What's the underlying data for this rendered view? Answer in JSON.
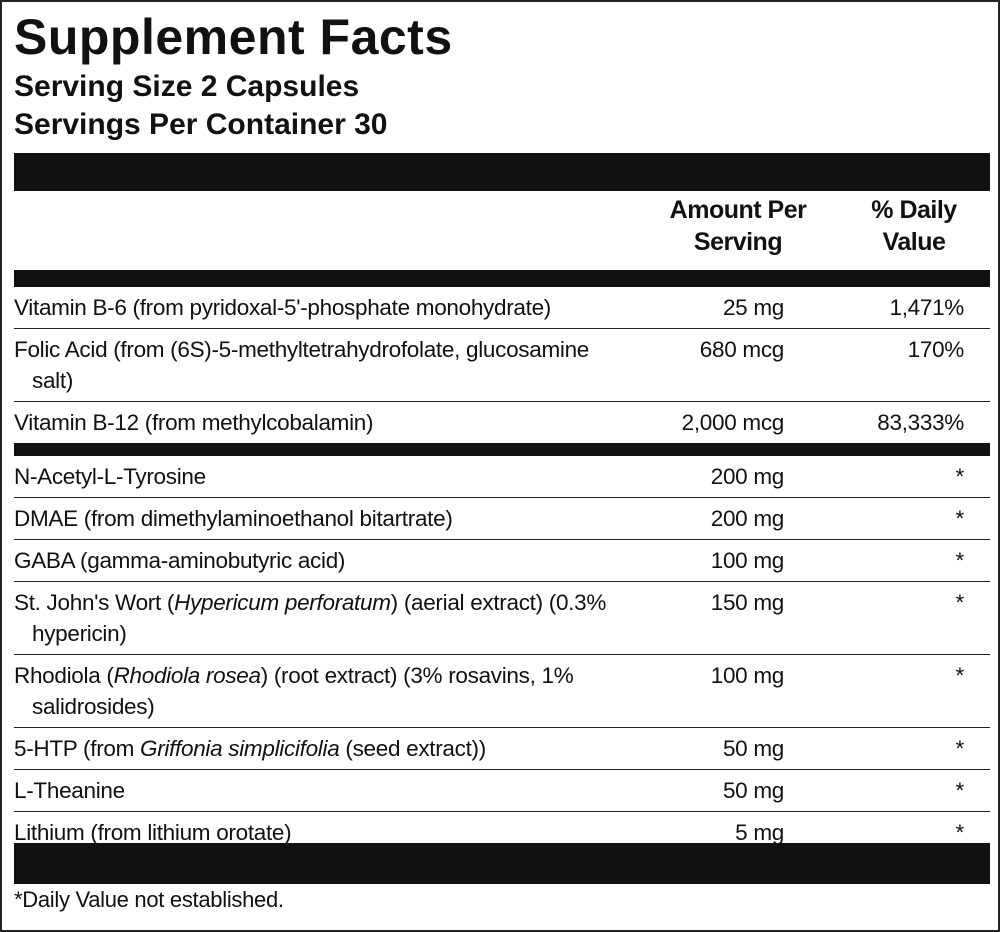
{
  "title": "Supplement Facts",
  "serving_size": "Serving Size 2 Capsules",
  "servings_per_container": "Servings Per Container 30",
  "header": {
    "amount": "Amount Per Serving",
    "daily_value": "% Daily Value"
  },
  "groups": [
    {
      "rows": [
        {
          "name_parts": [
            "Vitamin B-6 (from pyridoxal-5'-phosphate monohydrate)"
          ],
          "amount": "25 mg",
          "daily_value": "1,471%"
        },
        {
          "name_parts": [
            "Folic Acid (from (6S)-5-methyltetrahydrofolate, glucosamine salt)"
          ],
          "amount": "680 mcg",
          "daily_value": "170%"
        },
        {
          "name_parts": [
            "Vitamin B-12 (from methylcobalamin)"
          ],
          "amount": "2,000 mcg",
          "daily_value": "83,333%"
        }
      ]
    },
    {
      "rows": [
        {
          "name_parts": [
            "N-Acetyl-L-Tyrosine"
          ],
          "amount": "200 mg",
          "daily_value": "*"
        },
        {
          "name_parts": [
            "DMAE (from dimethylaminoethanol bitartrate)"
          ],
          "amount": "200 mg",
          "daily_value": "*"
        },
        {
          "name_parts": [
            "GABA (gamma-aminobutyric acid)"
          ],
          "amount": "100 mg",
          "daily_value": "*"
        },
        {
          "name_parts": [
            "St. John's Wort (",
            {
              "italic": "Hypericum perforatum"
            },
            ") (aerial extract) (0.3% hypericin)"
          ],
          "amount": "150 mg",
          "daily_value": "*"
        },
        {
          "name_parts": [
            "Rhodiola (",
            {
              "italic": "Rhodiola rosea"
            },
            ") (root extract) (3% rosavins, 1% salidrosides)"
          ],
          "amount": "100 mg",
          "daily_value": "*"
        },
        {
          "name_parts": [
            "5-HTP (from ",
            {
              "italic": "Griffonia simplicifolia"
            },
            " (seed extract))"
          ],
          "amount": "50 mg",
          "daily_value": "*"
        },
        {
          "name_parts": [
            "L-Theanine"
          ],
          "amount": "50 mg",
          "daily_value": "*"
        },
        {
          "name_parts": [
            "Lithium (from lithium orotate)"
          ],
          "amount": "5 mg",
          "daily_value": "*"
        }
      ]
    }
  ],
  "footnote": "*Daily Value not established."
}
